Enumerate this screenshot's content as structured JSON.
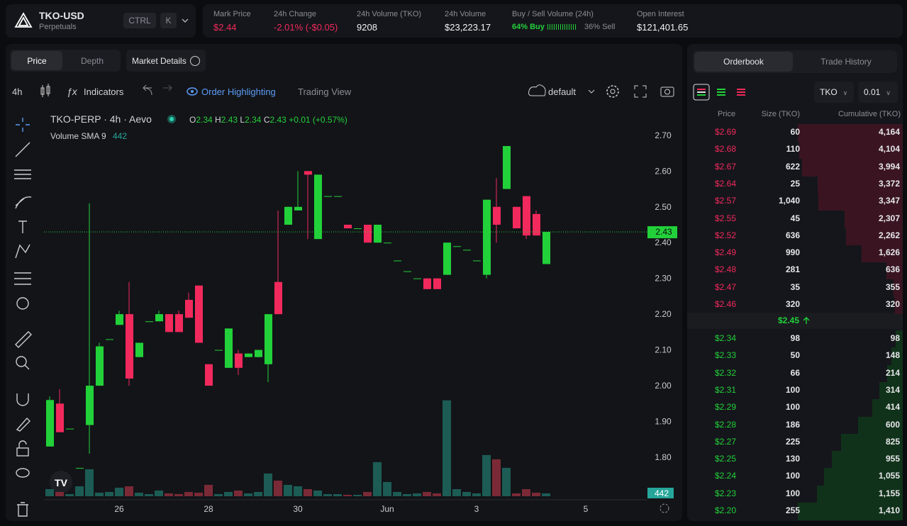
{
  "header": {
    "symbol": "TKO-USD",
    "subtitle": "Perpetuals",
    "shortcut_1": "CTRL",
    "shortcut_2": "K",
    "stats": [
      {
        "label": "Mark Price",
        "value": "$2.44"
      },
      {
        "label": "24h Change",
        "value": "-2.01% (-$0.05)"
      },
      {
        "label": "24h Volume (TKO)",
        "value": "9208"
      },
      {
        "label": "24h Volume",
        "value": "$23,223.17"
      },
      {
        "label": "Buy / Sell Volume (24h)",
        "value": "64% Buy",
        "extra": "36% Sell"
      },
      {
        "label": "Open Interest",
        "value": "$121,401.65"
      }
    ]
  },
  "chart_tabs": [
    "Price",
    "Depth"
  ],
  "market_details": "Market Details",
  "toolbar": {
    "interval": "4h",
    "indicators": "Indicators",
    "order_highlighting": "Order Highlighting",
    "trading_view": "Trading View",
    "layout": "default"
  },
  "legend": {
    "symbol": "TKO-PERP · 4h · Aevo",
    "ohlc": [
      {
        "key": "O",
        "value": "2.34"
      },
      {
        "key": "H",
        "value": "2.43"
      },
      {
        "key": "L",
        "value": "2.34"
      },
      {
        "key": "C",
        "value": "2.43"
      }
    ],
    "change": "+0.01 (+0.57%)",
    "volume_name": "Volume SMA 9",
    "volume_value": "442"
  },
  "chart": {
    "type": "candlestick",
    "up_color": "#22d13a",
    "down_color": "#f2295c",
    "ylim": [
      1.691,
      2.781
    ],
    "yticks": [
      {
        "value": 2.7,
        "label": "2.70"
      },
      {
        "value": 2.6,
        "label": "2.60"
      },
      {
        "value": 2.5,
        "label": "2.50"
      },
      {
        "value": 2.4,
        "label": "2.40"
      },
      {
        "value": 2.3,
        "label": "2.30"
      },
      {
        "value": 2.2,
        "label": "2.20"
      },
      {
        "value": 2.1,
        "label": "2.10"
      },
      {
        "value": 2.0,
        "label": "2.00"
      },
      {
        "value": 1.9,
        "label": "1.90"
      },
      {
        "value": 1.8,
        "label": "1.80"
      }
    ],
    "xticks": [
      {
        "value": 7,
        "label": "26"
      },
      {
        "value": 16,
        "label": "28"
      },
      {
        "value": 25,
        "label": "30"
      },
      {
        "value": 34,
        "label": "Jun"
      },
      {
        "value": 43,
        "label": "3"
      },
      {
        "value": 54,
        "label": "5"
      }
    ],
    "last_price": {
      "value": 2.43,
      "label": "2.43"
    },
    "volume_tag": "442",
    "vlim": [
      0,
      15000
    ],
    "candles": [
      {
        "o": 1.83,
        "h": 1.97,
        "l": 1.83,
        "c": 1.96
      },
      {
        "o": 1.95,
        "h": 1.99,
        "l": 1.87,
        "c": 1.87
      },
      {
        "o": 1.88,
        "h": 1.88,
        "l": 1.88,
        "c": 1.88
      },
      {
        "o": 1.77,
        "h": 1.77,
        "l": 1.77,
        "c": 1.77
      },
      {
        "o": 1.89,
        "h": 2.51,
        "l": 1.81,
        "c": 2.0
      },
      {
        "o": 2.0,
        "h": 2.12,
        "l": 2.0,
        "c": 2.11
      },
      {
        "o": 2.13,
        "h": 2.13,
        "l": 2.13,
        "c": 2.13
      },
      {
        "o": 2.17,
        "h": 2.21,
        "l": 2.17,
        "c": 2.2
      },
      {
        "o": 2.2,
        "h": 2.29,
        "l": 2.0,
        "c": 2.02
      },
      {
        "o": 2.08,
        "h": 2.12,
        "l": 2.08,
        "c": 2.12
      },
      {
        "o": 2.18,
        "h": 2.18,
        "l": 2.18,
        "c": 2.18
      },
      {
        "o": 2.18,
        "h": 2.21,
        "l": 2.18,
        "c": 2.2
      },
      {
        "o": 2.2,
        "h": 2.2,
        "l": 2.15,
        "c": 2.15
      },
      {
        "o": 2.2,
        "h": 2.21,
        "l": 2.15,
        "c": 2.15
      },
      {
        "o": 2.24,
        "h": 2.26,
        "l": 2.19,
        "c": 2.19
      },
      {
        "o": 2.28,
        "h": 2.28,
        "l": 2.12,
        "c": 2.12
      },
      {
        "o": 2.06,
        "h": 2.06,
        "l": 2.0,
        "c": 2.0
      },
      {
        "o": 2.1,
        "h": 2.1,
        "l": 2.1,
        "c": 2.1
      },
      {
        "o": 2.05,
        "h": 2.16,
        "l": 2.05,
        "c": 2.16
      },
      {
        "o": 2.09,
        "h": 2.1,
        "l": 2.03,
        "c": 2.05
      },
      {
        "o": 2.08,
        "h": 2.09,
        "l": 2.08,
        "c": 2.09
      },
      {
        "o": 2.08,
        "h": 2.1,
        "l": 2.08,
        "c": 2.1
      },
      {
        "o": 2.06,
        "h": 2.2,
        "l": 2.01,
        "c": 2.2
      },
      {
        "o": 2.29,
        "h": 2.49,
        "l": 2.2,
        "c": 2.2
      },
      {
        "o": 2.45,
        "h": 2.5,
        "l": 2.45,
        "c": 2.5
      },
      {
        "o": 2.49,
        "h": 2.6,
        "l": 2.49,
        "c": 2.5
      },
      {
        "o": 2.6,
        "h": 2.6,
        "l": 2.41,
        "c": 2.59
      },
      {
        "o": 2.41,
        "h": 2.59,
        "l": 2.41,
        "c": 2.59
      },
      {
        "o": 2.53,
        "h": 2.53,
        "l": 2.53,
        "c": 2.53
      },
      {
        "o": 2.53,
        "h": 2.53,
        "l": 2.53,
        "c": 2.53
      },
      {
        "o": 2.45,
        "h": 2.45,
        "l": 2.44,
        "c": 2.44
      },
      {
        "o": 2.44,
        "h": 2.44,
        "l": 2.44,
        "c": 2.44
      },
      {
        "o": 2.45,
        "h": 2.45,
        "l": 2.4,
        "c": 2.4
      },
      {
        "o": 2.4,
        "h": 2.45,
        "l": 2.4,
        "c": 2.45
      },
      {
        "o": 2.4,
        "h": 2.4,
        "l": 2.4,
        "c": 2.4
      },
      {
        "o": 2.35,
        "h": 2.35,
        "l": 2.35,
        "c": 2.35
      },
      {
        "o": 2.32,
        "h": 2.32,
        "l": 2.32,
        "c": 2.32
      },
      {
        "o": 2.3,
        "h": 2.3,
        "l": 2.3,
        "c": 2.3
      },
      {
        "o": 2.3,
        "h": 2.3,
        "l": 2.27,
        "c": 2.27
      },
      {
        "o": 2.3,
        "h": 2.3,
        "l": 2.27,
        "c": 2.27
      },
      {
        "o": 2.31,
        "h": 2.4,
        "l": 2.31,
        "c": 2.4
      },
      {
        "o": 2.39,
        "h": 2.39,
        "l": 2.39,
        "c": 2.39
      },
      {
        "o": 2.38,
        "h": 2.38,
        "l": 2.38,
        "c": 2.38
      },
      {
        "o": 2.35,
        "h": 2.35,
        "l": 2.35,
        "c": 2.35
      },
      {
        "o": 2.31,
        "h": 2.52,
        "l": 2.3,
        "c": 2.52
      },
      {
        "o": 2.5,
        "h": 2.58,
        "l": 2.4,
        "c": 2.45
      },
      {
        "o": 2.55,
        "h": 2.67,
        "l": 2.55,
        "c": 2.67
      },
      {
        "o": 2.5,
        "h": 2.5,
        "l": 2.44,
        "c": 2.44
      },
      {
        "o": 2.53,
        "h": 2.53,
        "l": 2.41,
        "c": 2.42
      },
      {
        "o": 2.48,
        "h": 2.49,
        "l": 2.42,
        "c": 2.42
      },
      {
        "o": 2.34,
        "h": 2.43,
        "l": 2.34,
        "c": 2.43
      }
    ],
    "volumes": [
      900,
      540,
      270,
      1260,
      3420,
      450,
      540,
      1080,
      1260,
      450,
      270,
      720,
      360,
      270,
      540,
      450,
      1440,
      270,
      540,
      720,
      360,
      540,
      2880,
      1980,
      1440,
      1260,
      900,
      720,
      270,
      270,
      180,
      180,
      540,
      4320,
      1800,
      540,
      270,
      360,
      540,
      360,
      12150,
      900,
      540,
      360,
      5220,
      4680,
      3600,
      360,
      900,
      450,
      360
    ]
  },
  "orderbook": {
    "tabs": [
      "Orderbook",
      "Trade History"
    ],
    "unit": "TKO",
    "tick": "0.01",
    "columns": [
      "Price",
      "Size (TKO)",
      "Cumulative (TKO)"
    ],
    "asks": [
      {
        "price": "$2.69",
        "size": 60,
        "total": {
          "value": 4164,
          "label": "4,164"
        }
      },
      {
        "price": "$2.68",
        "size": 110,
        "total": {
          "value": 4104,
          "label": "4,104"
        }
      },
      {
        "price": "$2.67",
        "size": 622,
        "total": {
          "value": 3994,
          "label": "3,994"
        }
      },
      {
        "price": "$2.64",
        "size": 25,
        "total": {
          "value": 3372,
          "label": "3,372"
        }
      },
      {
        "price": "$2.57",
        "size": {
          "value": 1040,
          "label": "1,040"
        },
        "total": {
          "value": 3347,
          "label": "3,347"
        }
      },
      {
        "price": "$2.55",
        "size": 45,
        "total": {
          "value": 2307,
          "label": "2,307"
        }
      },
      {
        "price": "$2.52",
        "size": 636,
        "total": {
          "value": 2262,
          "label": "2,262"
        }
      },
      {
        "price": "$2.49",
        "size": 990,
        "total": {
          "value": 1626,
          "label": "1,626"
        }
      },
      {
        "price": "$2.48",
        "size": 281,
        "total": 636
      },
      {
        "price": "$2.47",
        "size": 35,
        "total": 355
      },
      {
        "price": "$2.46",
        "size": 320,
        "total": 320
      }
    ],
    "mid": "$2.45",
    "bids": [
      {
        "price": "$2.34",
        "size": 98,
        "total": 98
      },
      {
        "price": "$2.33",
        "size": 50,
        "total": 148
      },
      {
        "price": "$2.32",
        "size": 66,
        "total": 214
      },
      {
        "price": "$2.31",
        "size": 100,
        "total": 314
      },
      {
        "price": "$2.29",
        "size": 100,
        "total": 414
      },
      {
        "price": "$2.28",
        "size": 186,
        "total": 600
      },
      {
        "price": "$2.27",
        "size": 225,
        "total": 825
      },
      {
        "price": "$2.25",
        "size": 130,
        "total": 955
      },
      {
        "price": "$2.24",
        "size": 100,
        "total": {
          "value": 1055,
          "label": "1,055"
        }
      },
      {
        "price": "$2.23",
        "size": 100,
        "total": {
          "value": 1155,
          "label": "1,155"
        }
      },
      {
        "price": "$2.20",
        "size": 255,
        "total": {
          "value": 1410,
          "label": "1,410"
        }
      }
    ]
  }
}
